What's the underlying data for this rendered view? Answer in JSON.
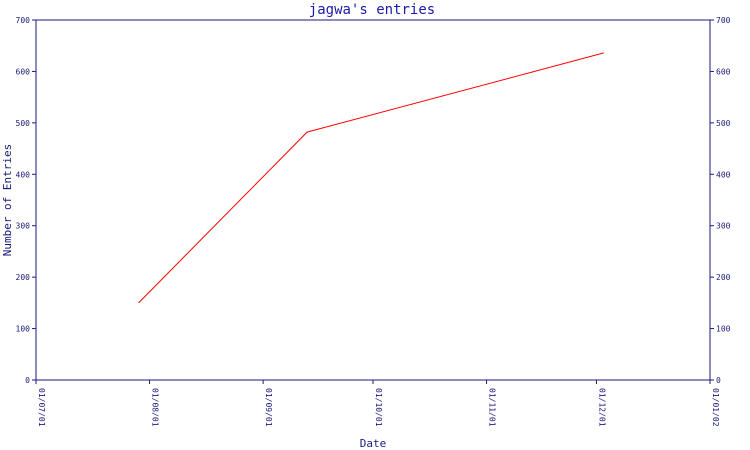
{
  "chart_data": {
    "type": "line",
    "title": "jagwa's entries",
    "xlabel": "Date",
    "ylabel": "Number of Entries",
    "x_tick_labels": [
      "01/07/01",
      "01/08/01",
      "01/09/01",
      "01/10/01",
      "01/11/01",
      "01/12/01",
      "01/01/02"
    ],
    "y_tick_labels": [
      "0",
      "100",
      "200",
      "300",
      "400",
      "500",
      "600",
      "700"
    ],
    "ylim": [
      0,
      700
    ],
    "xlim": [
      "2001-07-01",
      "2002-01-01"
    ],
    "grid": false,
    "series": [
      {
        "color": "#ff0000",
        "x": [
          "2001-07-29",
          "2001-09-13",
          "2001-12-03"
        ],
        "values": [
          150,
          482,
          636
        ]
      }
    ],
    "axis_color": "#1a1a7a"
  }
}
